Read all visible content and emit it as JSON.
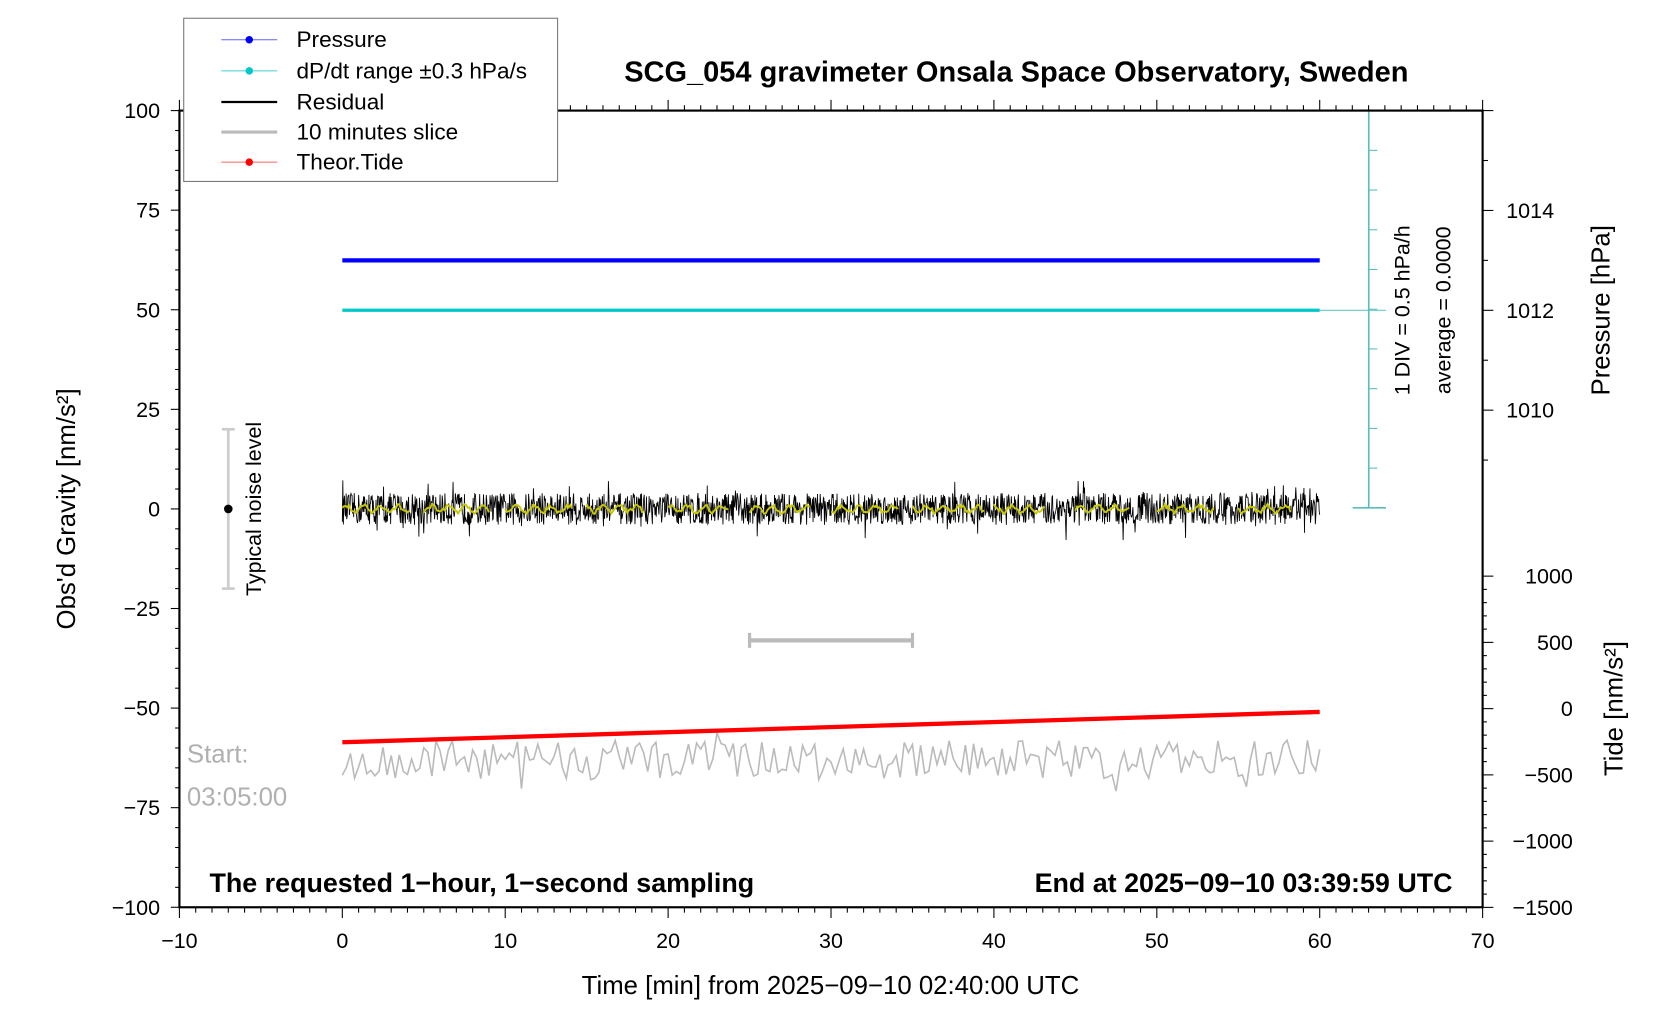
{
  "chart_data": {
    "type": "line",
    "title": "SCG_054 gravimeter Onsala Space Observatory, Sweden",
    "xlabel": "Time [min] from 2025−09−10 02:40:00 UTC",
    "ylabel": "Obs'd Gravity [nm/s²]",
    "ylabel_right_pressure": "Pressure [hPa]",
    "ylabel_right_tide": "Tide [nm/s²]",
    "xlim": [
      -10,
      70
    ],
    "ylim": [
      -100,
      100
    ],
    "pressure_ylim": [
      1008,
      1016
    ],
    "tide_ylim": [
      -1500,
      1000
    ],
    "x_ticks": [
      "−10",
      "0",
      "10",
      "20",
      "30",
      "40",
      "50",
      "60",
      "70"
    ],
    "y_ticks": [
      "100",
      "75",
      "50",
      "25",
      "0",
      "−25",
      "−50",
      "−75",
      "−100"
    ],
    "pressure_ticks": [
      "1014",
      "1012",
      "1010"
    ],
    "tide_ticks": [
      "1000",
      "500",
      "0",
      "−500",
      "−1000",
      "−1500"
    ],
    "legend": [
      "Pressure",
      "dP/dt range ±0.3 hPa/s",
      "Residual",
      "10 minutes slice",
      "Theor.Tide"
    ],
    "legend_placement": "top-left",
    "series": [
      {
        "name": "Pressure",
        "color": "#0000ff",
        "x_range": [
          0,
          60
        ],
        "value_hpa": 1013.0
      },
      {
        "name": "dP/dt",
        "color": "#00c8c8",
        "x_range": [
          0,
          60
        ],
        "value": 0.0
      },
      {
        "name": "Residual",
        "color": "#000000",
        "x_range": [
          0,
          60
        ],
        "mean": 0,
        "noise_amplitude": 4
      },
      {
        "name": "Residual smoothed",
        "color": "#c8c800",
        "x_range": [
          0,
          60
        ],
        "mean": 0
      },
      {
        "name": "10 minutes slice",
        "color": "#bbbbbb",
        "x_range": [
          0,
          60
        ],
        "mean": -63,
        "amplitude": 5
      },
      {
        "name": "Theor.Tide",
        "color": "#ff0000",
        "x": [
          0,
          60
        ],
        "y_nms2": [
          -254,
          -25
        ]
      }
    ],
    "slice_bar": {
      "x": [
        25,
        35
      ],
      "y": -33
    },
    "noise_bar": {
      "x": -7,
      "y": [
        -20,
        20
      ]
    },
    "dpdt_scale": {
      "label": "1 DIV = 0.5 hPa/h",
      "average": "average = 0.0000",
      "divisions": 10
    },
    "annotations": {
      "noise_label": "Typical noise level",
      "start_label": "Start:",
      "start_time": "03:05:00",
      "bottom_left": "The requested 1−hour, 1−second sampling",
      "bottom_right": "End at 2025−09−10 03:39:59 UTC"
    }
  }
}
